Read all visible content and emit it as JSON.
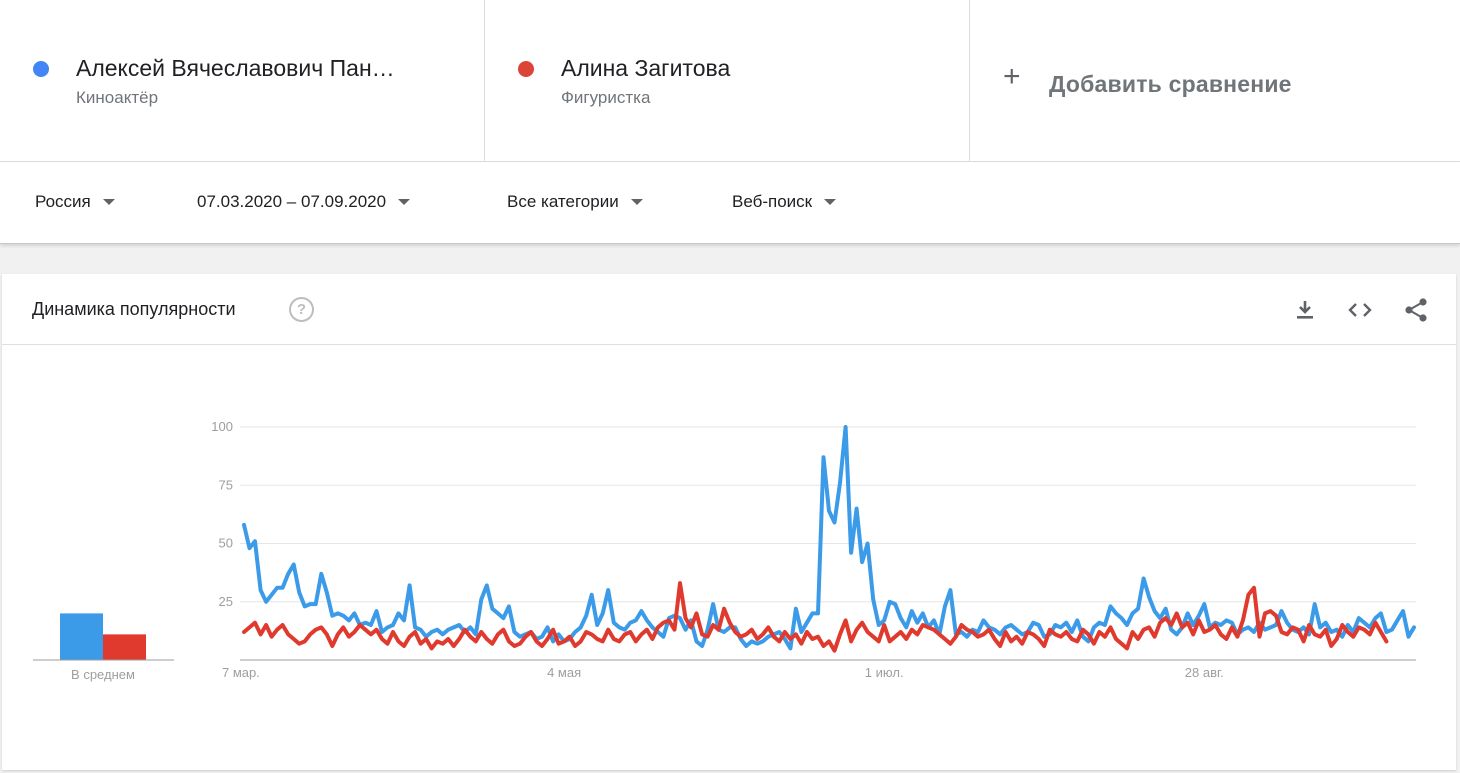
{
  "terms": [
    {
      "name": "Алексей Вячеславович Пан…",
      "subtitle": "Киноактёр",
      "color": "#4285f4"
    },
    {
      "name": "Алина Загитова",
      "subtitle": "Фигуристка",
      "color": "#db4437"
    }
  ],
  "add_compare": {
    "plus": "+",
    "label": "Добавить сравнение"
  },
  "filters": {
    "region": "Россия",
    "period": "07.03.2020 – 07.09.2020",
    "category": "Все категории",
    "search_type": "Веб-поиск"
  },
  "card": {
    "title": "Динамика популярности",
    "help_glyph": "?",
    "tools": [
      "download-icon",
      "embed-code-icon",
      "share-icon"
    ]
  },
  "chart_data": {
    "type": "line",
    "title": "",
    "xlabel": "",
    "ylabel": "",
    "ylim": [
      0,
      100
    ],
    "yticks": [
      25,
      50,
      75,
      100
    ],
    "x_start": "2020-03-07",
    "x_ticks": [
      {
        "label": "7 мар.",
        "index": 0
      },
      {
        "label": "4 мая",
        "index": 58
      },
      {
        "label": "1 июл.",
        "index": 116
      },
      {
        "label": "28 авг.",
        "index": 174
      }
    ],
    "grid": true,
    "series": [
      {
        "name": "Алексей Вячеславович Пан…",
        "color": "#4285f4",
        "line_color": "#3b9be8",
        "values": [
          58,
          48,
          51,
          30,
          25,
          28,
          31,
          31,
          37,
          41,
          29,
          23,
          24,
          24,
          37,
          29,
          19,
          20,
          19,
          17,
          20,
          15,
          16,
          15,
          21,
          12,
          14,
          15,
          20,
          17,
          32,
          14,
          13,
          10,
          12,
          13,
          11,
          13,
          14,
          15,
          12,
          14,
          11,
          26,
          32,
          22,
          20,
          18,
          23,
          12,
          10,
          11,
          12,
          9,
          10,
          14,
          8,
          11,
          8,
          9,
          12,
          14,
          19,
          28,
          15,
          20,
          30,
          16,
          14,
          13,
          16,
          17,
          21,
          17,
          14,
          12,
          10,
          18,
          19,
          18,
          13,
          17,
          8,
          6,
          13,
          24,
          13,
          12,
          14,
          14,
          9,
          6,
          8,
          7,
          8,
          10,
          11,
          12,
          9,
          5,
          22,
          12,
          16,
          20,
          20,
          87,
          64,
          59,
          76,
          100,
          46,
          65,
          42,
          50,
          26,
          15,
          17,
          25,
          24,
          18,
          14,
          21,
          16,
          20,
          14,
          17,
          11,
          23,
          30,
          11,
          12,
          10,
          13,
          12,
          17,
          14,
          13,
          11,
          14,
          15,
          13,
          11,
          12,
          16,
          15,
          10,
          11,
          15,
          14,
          16,
          12,
          17,
          10,
          8,
          14,
          16,
          15,
          23,
          20,
          18,
          15,
          20,
          22,
          35,
          27,
          21,
          18,
          22,
          13,
          11,
          14,
          20,
          15,
          19,
          24,
          14,
          16,
          15,
          17,
          16,
          11,
          13,
          14,
          12,
          16,
          13,
          14,
          15,
          21,
          16,
          13,
          12,
          14,
          11,
          24,
          14,
          16,
          12,
          13,
          10,
          15,
          12,
          18,
          16,
          14,
          18,
          20,
          12,
          13,
          17,
          21,
          10,
          14
        ]
      },
      {
        "name": "Алина Загитова",
        "color": "#db4437",
        "line_color": "#e03a2e",
        "values": [
          12,
          14,
          16,
          11,
          15,
          10,
          13,
          15,
          11,
          9,
          7,
          8,
          11,
          13,
          14,
          11,
          6,
          11,
          14,
          10,
          12,
          15,
          13,
          11,
          13,
          9,
          7,
          12,
          8,
          6,
          10,
          12,
          7,
          9,
          5,
          8,
          7,
          9,
          6,
          9,
          13,
          10,
          8,
          12,
          9,
          7,
          11,
          13,
          8,
          6,
          7,
          10,
          12,
          8,
          6,
          9,
          13,
          7,
          8,
          10,
          6,
          8,
          12,
          11,
          9,
          8,
          13,
          9,
          8,
          11,
          12,
          8,
          11,
          13,
          9,
          14,
          16,
          17,
          13,
          33,
          18,
          14,
          20,
          11,
          10,
          15,
          13,
          22,
          16,
          12,
          10,
          11,
          13,
          9,
          11,
          14,
          10,
          8,
          12,
          9,
          11,
          7,
          12,
          9,
          10,
          6,
          8,
          4,
          11,
          17,
          8,
          13,
          16,
          12,
          10,
          8,
          15,
          8,
          10,
          12,
          9,
          13,
          11,
          15,
          14,
          13,
          11,
          9,
          7,
          10,
          15,
          13,
          12,
          10,
          11,
          13,
          9,
          6,
          12,
          8,
          10,
          7,
          12,
          11,
          9,
          6,
          13,
          11,
          10,
          12,
          9,
          8,
          13,
          11,
          7,
          12,
          10,
          14,
          9,
          7,
          5,
          12,
          9,
          13,
          14,
          10,
          16,
          18,
          15,
          20,
          14,
          16,
          11,
          17,
          12,
          13,
          15,
          11,
          9,
          14,
          10,
          17,
          28,
          31,
          10,
          20,
          21,
          19,
          12,
          11,
          14,
          13,
          8,
          15,
          11,
          10,
          13,
          6,
          9,
          15,
          12,
          10,
          14,
          13,
          11,
          16,
          12,
          8
        ]
      }
    ],
    "avg_bars": {
      "label": "В среднем",
      "values": [
        20,
        11
      ]
    }
  }
}
